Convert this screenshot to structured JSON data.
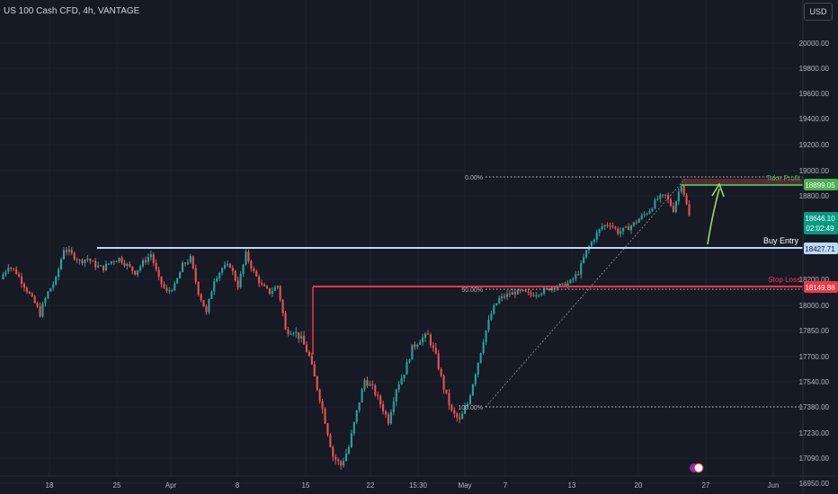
{
  "header": {
    "title": "US 100 Cash CFD, 4h, VANTAGE",
    "currency": "USD"
  },
  "colors": {
    "background": "#161a25",
    "up": "#26a69a",
    "down": "#ef5350",
    "take_profit": "#4caf50",
    "stop_loss": "#f23645",
    "entry": "#bbd9fb",
    "text": "#b2b5be"
  },
  "chart_data": {
    "type": "candlestick",
    "price_axis_ticks": [
      "20000.00",
      "19800.00",
      "19600.00",
      "19400.00",
      "19200.00",
      "19000.00",
      "18800.00",
      "18200.00",
      "18000.00",
      "17850.00",
      "17700.00",
      "17540.00",
      "17380.00",
      "17230.00",
      "17090.00",
      "16950.00"
    ],
    "time_axis_ticks": [
      "18",
      "25",
      "Apr",
      "8",
      "15",
      "22",
      "15:30",
      "May",
      "7",
      "13",
      "20",
      "27",
      "Jun"
    ],
    "fib_levels": [
      {
        "label": "0.00%",
        "price": 18950
      },
      {
        "label": "50.00%",
        "price": 18140
      },
      {
        "label": "100.00%",
        "price": 17260
      }
    ],
    "levels": [
      {
        "label": "Take Profit",
        "price": 18899.05,
        "tag": "18899.05"
      },
      {
        "label": "Buy Entry",
        "price": 18427.71,
        "tag": "18427.71"
      },
      {
        "label": "Stop Loss",
        "price": 18149.88,
        "tag": "18149.88"
      }
    ],
    "last_price": {
      "value": "18646.10",
      "countdown": "02:02:49"
    },
    "price_path": [
      18200,
      18300,
      18250,
      18150,
      18050,
      17950,
      18100,
      18200,
      18420,
      18380,
      18330,
      18350,
      18300,
      18280,
      18330,
      18350,
      18300,
      18250,
      18320,
      18380,
      18200,
      18100,
      18150,
      18300,
      18350,
      18100,
      17950,
      18200,
      18280,
      18300,
      18150,
      18380,
      18250,
      18150,
      18100,
      18150,
      17850,
      17850,
      17800,
      17700,
      17500,
      17300,
      17100,
      17050,
      17150,
      17350,
      17550,
      17500,
      17400,
      17300,
      17500,
      17600,
      17750,
      17800,
      17820,
      17700,
      17500,
      17350,
      17300,
      17400,
      17600,
      17800,
      17950,
      18050,
      18080,
      18100,
      18100,
      18080,
      18100,
      18120,
      18150,
      18150,
      18180,
      18250,
      18400,
      18500,
      18580,
      18600,
      18540,
      18560,
      18600,
      18650,
      18700,
      18780,
      18800,
      18700,
      18900,
      18650
    ]
  }
}
